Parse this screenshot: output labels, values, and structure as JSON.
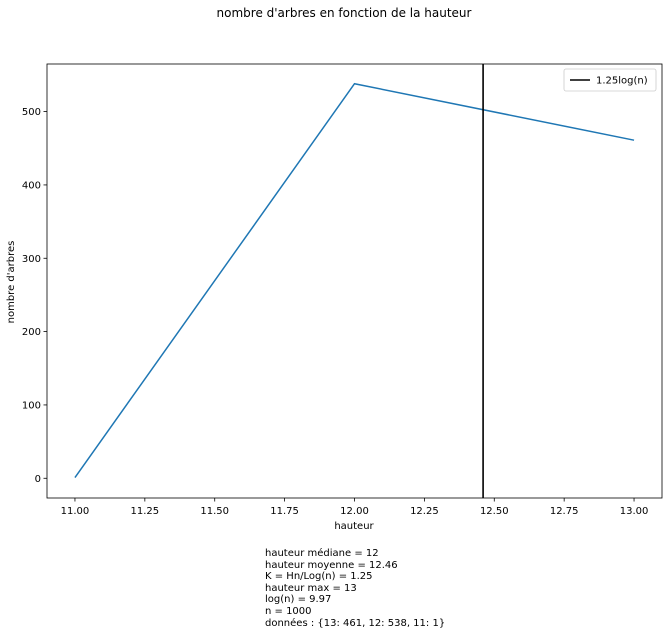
{
  "chart_data": {
    "type": "line",
    "title": "nombre d'arbres en fonction de la hauteur",
    "xlabel": "hauteur",
    "ylabel": "nombre d'arbres",
    "xlim": [
      10.9,
      13.1
    ],
    "ylim": [
      -26.9,
      564.9
    ],
    "x_ticks": [
      11.0,
      11.25,
      11.5,
      11.75,
      12.0,
      12.25,
      12.5,
      12.75,
      13.0
    ],
    "x_tick_labels": [
      "11.00",
      "11.25",
      "11.50",
      "11.75",
      "12.00",
      "12.25",
      "12.50",
      "12.75",
      "13.00"
    ],
    "y_ticks": [
      0,
      100,
      200,
      300,
      400,
      500
    ],
    "y_tick_labels": [
      "0",
      "100",
      "200",
      "300",
      "400",
      "500"
    ],
    "grid": false,
    "legend_position": "top-right",
    "series": [
      {
        "x": [
          11,
          12,
          13
        ],
        "values": [
          1,
          538,
          461
        ],
        "color": "#1f77b4"
      }
    ],
    "vlines": [
      {
        "name": "1.25log(n)",
        "x": 12.46,
        "color": "#000000"
      }
    ]
  },
  "stats": [
    "hauteur médiane = 12",
    "hauteur moyenne = 12.46",
    "K = Hn/Log(n) = 1.25",
    "hauteur max = 13",
    "log(n) = 9.97",
    "n = 1000",
    "données : {13: 461, 12: 538, 11: 1}"
  ]
}
